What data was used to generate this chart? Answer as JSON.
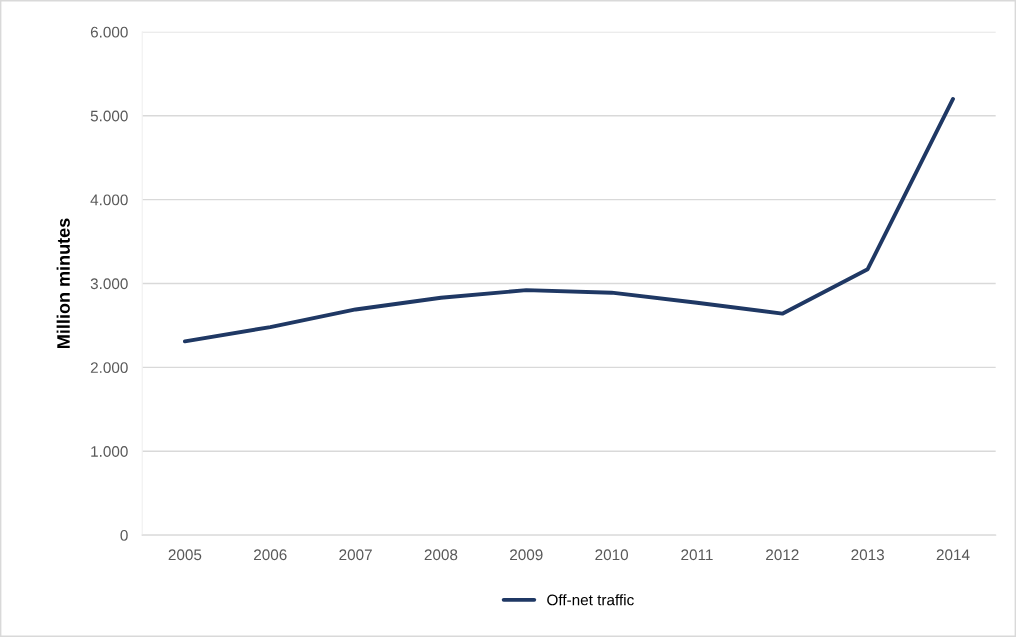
{
  "chart_data": {
    "type": "line",
    "ylabel": "Million minutes",
    "categories": [
      "2005",
      "2006",
      "2007",
      "2008",
      "2009",
      "2010",
      "2011",
      "2012",
      "2013",
      "2014"
    ],
    "series": [
      {
        "name": "Off-net traffic",
        "color": "#1f3864",
        "values": [
          2310,
          2480,
          2690,
          2830,
          2920,
          2890,
          2770,
          2640,
          3170,
          5200
        ]
      }
    ],
    "ylim": [
      0,
      6000
    ],
    "yticks": [
      {
        "value": 0,
        "label": "0"
      },
      {
        "value": 1000,
        "label": "1.000"
      },
      {
        "value": 2000,
        "label": "2.000"
      },
      {
        "value": 3000,
        "label": "3.000"
      },
      {
        "value": 4000,
        "label": "4.000"
      },
      {
        "value": 5000,
        "label": "5.000"
      },
      {
        "value": 6000,
        "label": "6.000"
      }
    ],
    "grid": "y",
    "legend": "bottom",
    "marker": "none",
    "line_style": "solid"
  }
}
